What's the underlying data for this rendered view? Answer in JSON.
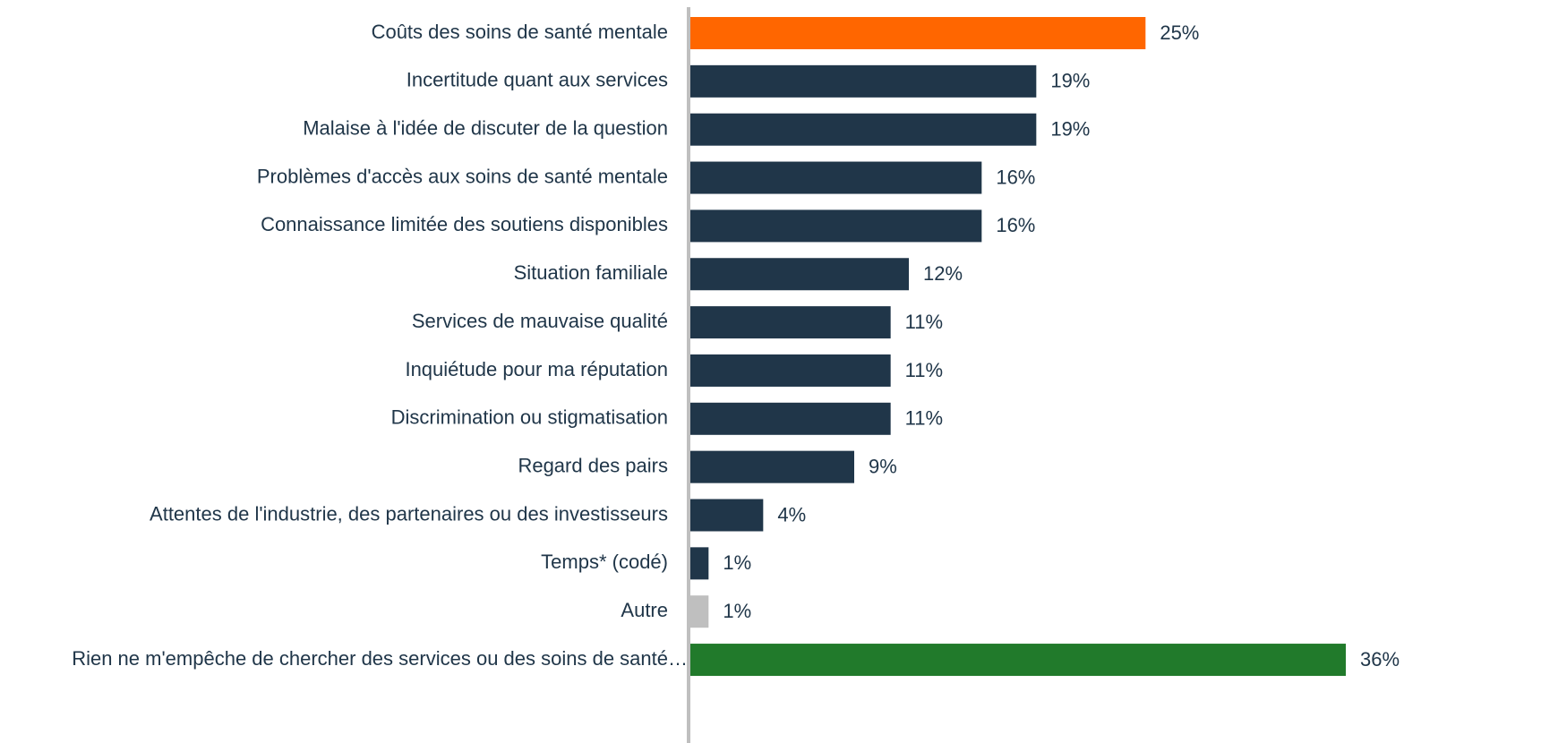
{
  "chart_data": {
    "type": "bar",
    "orientation": "horizontal",
    "categories": [
      "Coûts des soins de santé mentale",
      "Incertitude quant aux services",
      "Malaise à l'idée de discuter de la question",
      "Problèmes d'accès aux soins de santé mentale",
      "Connaissance limitée des soutiens disponibles",
      "Situation familiale",
      "Services de mauvaise qualité",
      "Inquiétude pour ma réputation",
      "Discrimination ou stigmatisation",
      "Regard des pairs",
      "Attentes de l'industrie, des partenaires ou des investisseurs",
      "Temps* (codé)",
      "Autre",
      "Rien ne m'empêche de chercher des services ou des soins de santé…"
    ],
    "values": [
      25,
      19,
      19,
      16,
      16,
      12,
      11,
      11,
      11,
      9,
      4,
      1,
      1,
      36
    ],
    "value_labels": [
      "25%",
      "19%",
      "19%",
      "16%",
      "16%",
      "12%",
      "11%",
      "11%",
      "11%",
      "9%",
      "4%",
      "1%",
      "1%",
      "36%"
    ],
    "colors": [
      "#ff6600",
      "#203649",
      "#203649",
      "#203649",
      "#203649",
      "#203649",
      "#203649",
      "#203649",
      "#203649",
      "#203649",
      "#203649",
      "#203649",
      "#bfbfbf",
      "#217a2b"
    ]
  }
}
